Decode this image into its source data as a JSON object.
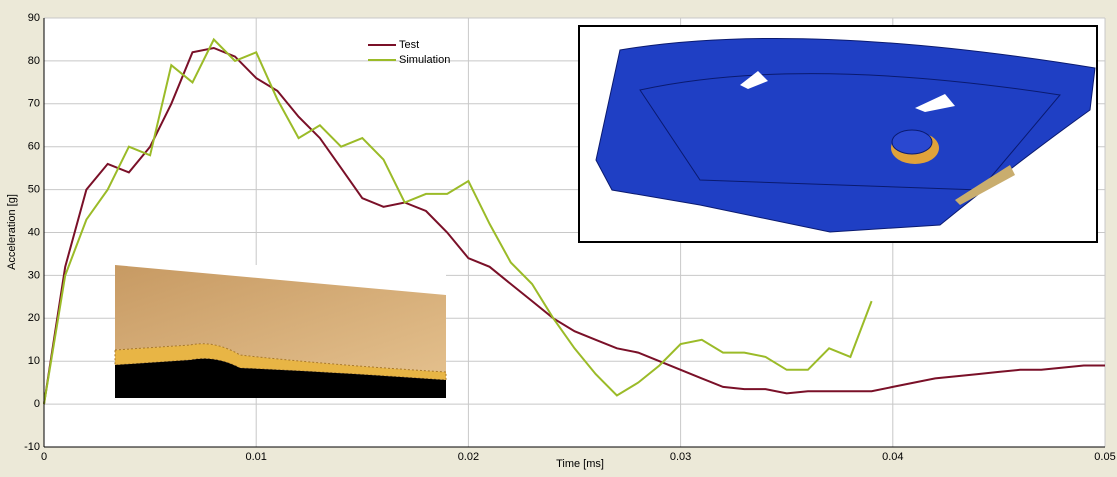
{
  "chart_data": {
    "type": "line",
    "x_label": "Time [ms]",
    "y_label": "Acceleration [g]",
    "x": [
      0,
      0.001,
      0.002,
      0.003,
      0.004,
      0.005,
      0.006,
      0.007,
      0.008,
      0.009,
      0.01,
      0.011,
      0.012,
      0.013,
      0.014,
      0.015,
      0.016,
      0.017,
      0.018,
      0.019,
      0.02,
      0.021,
      0.022,
      0.023,
      0.024,
      0.025,
      0.026,
      0.027,
      0.028,
      0.029,
      0.03,
      0.031,
      0.032,
      0.033,
      0.034,
      0.035,
      0.036,
      0.037,
      0.038,
      0.039,
      0.04,
      0.041,
      0.042,
      0.043,
      0.044,
      0.045,
      0.046,
      0.047,
      0.048,
      0.049,
      0.05
    ],
    "series": [
      {
        "name": "Test",
        "color": "#7a1028",
        "values": [
          0,
          32,
          50,
          56,
          54,
          60,
          70,
          82,
          83,
          81,
          76,
          73,
          67,
          62,
          55,
          48,
          46,
          47,
          45,
          40,
          34,
          32,
          28,
          24,
          20,
          17,
          15,
          13,
          12,
          10,
          8,
          6,
          4,
          3.5,
          3.5,
          2.5,
          3,
          3,
          3,
          3,
          4,
          5,
          6,
          6.5,
          7,
          7.5,
          8,
          8,
          8.5,
          9,
          9
        ]
      },
      {
        "name": "Simulation",
        "color": "#9bbb28",
        "values": [
          0,
          30,
          43,
          50,
          60,
          58,
          79,
          75,
          85,
          80,
          82,
          71,
          62,
          65,
          60,
          62,
          57,
          47,
          49,
          49,
          52,
          42,
          33,
          28,
          20,
          13,
          7,
          2,
          5,
          9,
          14,
          15,
          12,
          12,
          11,
          8,
          8,
          13,
          11,
          24,
          null,
          null,
          null,
          null,
          null,
          null,
          null,
          null,
          null,
          null,
          null
        ]
      }
    ],
    "xlim": [
      0,
      0.05
    ],
    "xticks": [
      0,
      0.01,
      0.02,
      0.03,
      0.04,
      0.05
    ],
    "ylim": [
      -10,
      90
    ],
    "yticks": [
      -10,
      0,
      10,
      20,
      30,
      40,
      50,
      60,
      70,
      80,
      90
    ],
    "grid": true,
    "legend": "top"
  }
}
